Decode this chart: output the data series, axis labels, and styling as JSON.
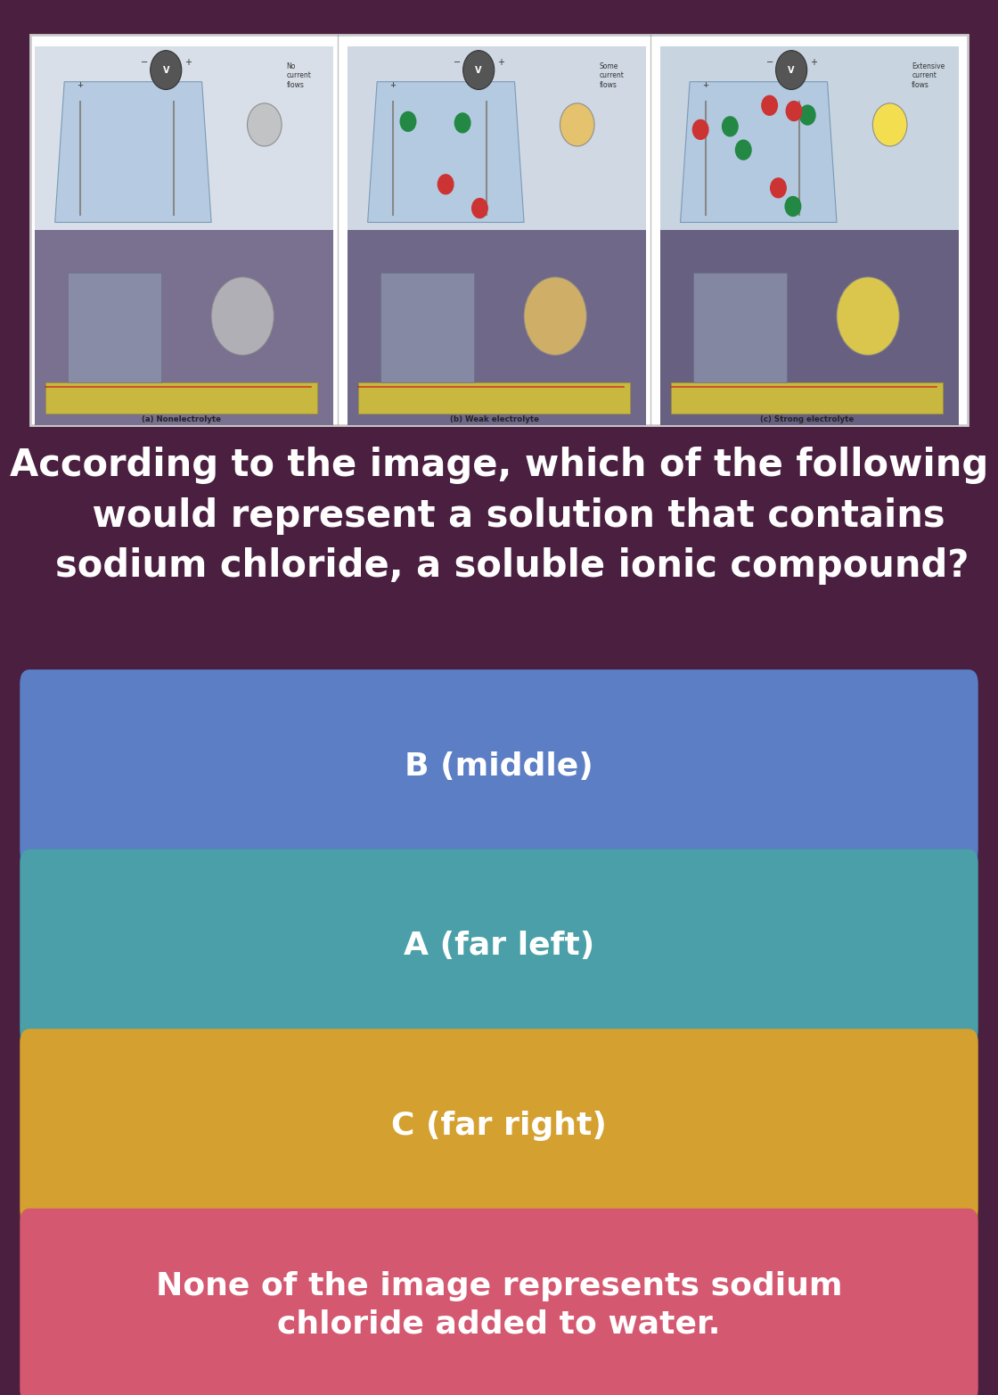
{
  "bg_color": "#4a1f3f",
  "question_text": "According to the image, which of the following\n   would represent a solution that contains\n  sodium chloride, a soluble ionic compound?",
  "question_color": "#ffffff",
  "question_fontsize": 30,
  "options": [
    {
      "text": "B (middle)",
      "bg": "#5b7ec4",
      "border": "#3a5a9a",
      "text_color": "#ffffff"
    },
    {
      "text": "A (far left)",
      "bg": "#4a9fa8",
      "border": "#2e7a82",
      "text_color": "#ffffff"
    },
    {
      "text": "C (far right)",
      "bg": "#d4a030",
      "border": "#a87820",
      "text_color": "#ffffff"
    },
    {
      "text": "None of the image represents sodium\nchloride added to water.",
      "bg": "#d45870",
      "border": "#a83050",
      "text_color": "#ffffff"
    }
  ],
  "option_fontsize": 26,
  "figure_width": 11.2,
  "figure_height": 15.65,
  "labels": [
    "(a) Nonelectrolyte",
    "(b) Weak electrolyte",
    "(c) Strong electrolyte"
  ],
  "captions": [
    "No\ncurrent\nflows",
    "Some\ncurrent\nflows",
    "Extensive\ncurrent\nflows"
  ]
}
